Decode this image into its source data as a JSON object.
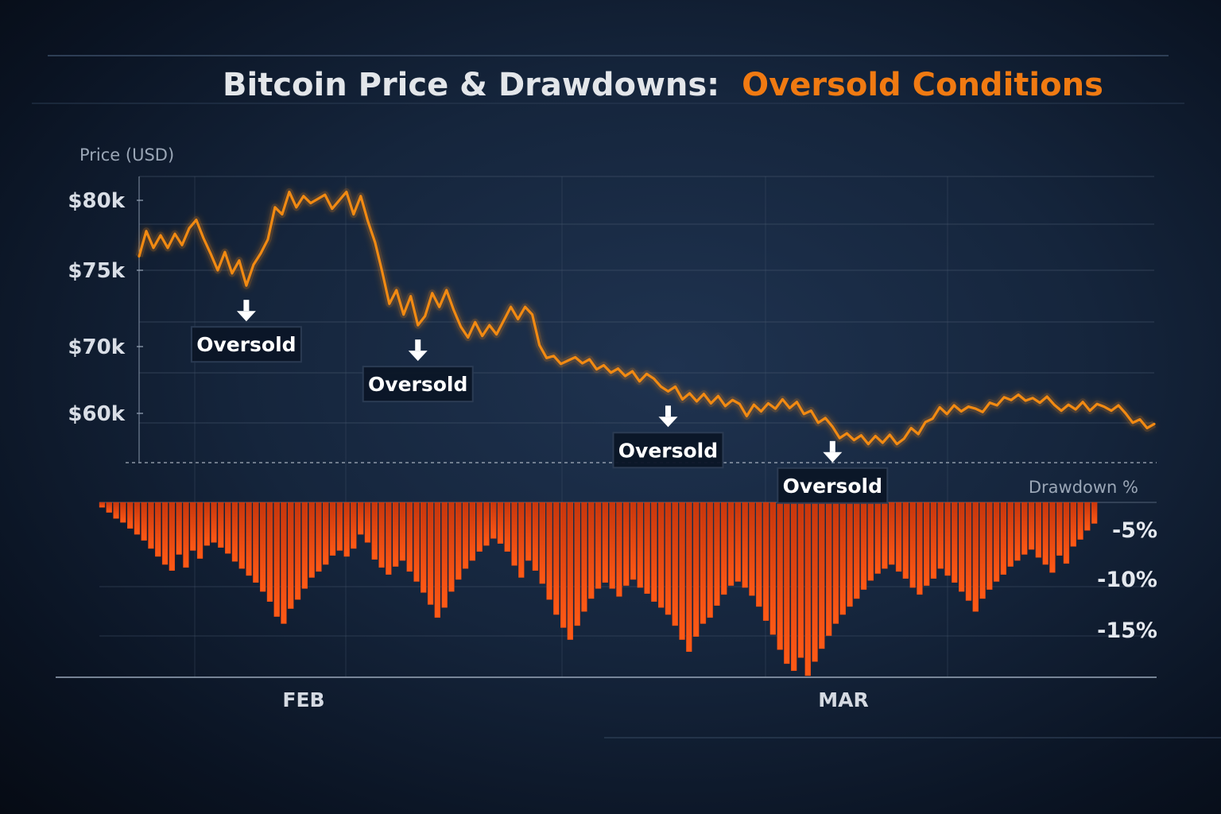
{
  "chart_data": {
    "type": "line",
    "title_main": "Bitcoin Price & Drawdowns:",
    "title_highlight": "Oversold Conditions",
    "title_color": "#e3e6ea",
    "highlight_color": "#f07a12",
    "price_axis_label": "Price (USD)",
    "drawdown_axis_label": "Drawdown %",
    "price_ticks": [
      "$80k",
      "$75k",
      "$70k",
      "$60k"
    ],
    "drawdown_ticks": [
      "-5%",
      "-10%",
      "-15%"
    ],
    "x_ticks": [
      "FEB",
      "MAR"
    ],
    "price_line_color": "#f28a12",
    "drawdown_bar_color": "#e8440f",
    "grid": true,
    "price_series": {
      "name": "Bitcoin price",
      "unit": "thousand USD",
      "values": [
        76.0,
        77.8,
        76.6,
        77.5,
        76.6,
        77.6,
        76.8,
        78.0,
        78.6,
        77.3,
        76.2,
        75.0,
        76.3,
        74.8,
        75.7,
        74.0,
        75.4,
        76.2,
        77.2,
        79.5,
        79.0,
        80.6,
        79.5,
        80.3,
        79.8,
        80.1,
        80.4,
        79.4,
        80.0,
        80.6,
        79.0,
        80.3,
        78.5,
        77.0,
        74.9,
        72.8,
        73.7,
        72.1,
        73.3,
        71.4,
        72.0,
        73.5,
        72.6,
        73.7,
        72.4,
        71.3,
        70.6,
        71.6,
        70.7,
        71.4,
        70.8,
        71.7,
        72.6,
        71.8,
        72.6,
        72.1,
        70.1,
        68.3,
        68.6,
        67.4,
        67.9,
        68.4,
        67.5,
        68.1,
        66.6,
        67.2,
        66.1,
        66.7,
        65.6,
        66.3,
        64.8,
        65.9,
        65.2,
        64.0,
        63.3,
        64.0,
        62.1,
        63.0,
        61.8,
        62.9,
        61.5,
        62.6,
        61.1,
        62.0,
        61.4,
        59.6,
        61.3,
        60.3,
        61.5,
        60.7,
        62.1,
        60.8,
        61.7,
        59.9,
        60.4,
        58.6,
        59.3,
        58.0,
        56.3,
        57.0,
        56.0,
        56.7,
        55.4,
        56.6,
        55.6,
        56.8,
        55.4,
        56.2,
        57.8,
        56.9,
        58.7,
        59.2,
        60.9,
        59.9,
        61.2,
        60.3,
        61.0,
        60.7,
        60.2,
        61.6,
        61.2,
        62.4,
        62.0,
        62.8,
        61.9,
        62.3,
        61.6,
        62.5,
        61.3,
        60.4,
        61.3,
        60.6,
        61.7,
        60.4,
        61.4,
        61.0,
        60.4,
        61.2,
        60.0,
        58.6,
        59.1,
        57.8,
        58.4
      ]
    },
    "drawdown_series": {
      "name": "Drawdown",
      "unit": "percent",
      "values": [
        -0.5,
        -1.0,
        -1.6,
        -2.0,
        -2.6,
        -3.2,
        -3.8,
        -4.6,
        -5.4,
        -6.2,
        -6.8,
        -5.2,
        -6.5,
        -4.8,
        -5.6,
        -4.3,
        -4.0,
        -4.5,
        -5.1,
        -5.9,
        -6.6,
        -7.3,
        -8.0,
        -8.9,
        -9.9,
        -11.4,
        -12.1,
        -10.6,
        -9.7,
        -8.6,
        -7.5,
        -6.9,
        -6.2,
        -5.3,
        -4.8,
        -5.4,
        -4.6,
        -3.2,
        -4.0,
        -5.7,
        -6.5,
        -7.2,
        -6.4,
        -5.8,
        -6.9,
        -7.9,
        -9.0,
        -10.2,
        -11.5,
        -10.5,
        -8.9,
        -7.7,
        -6.6,
        -5.8,
        -4.9,
        -4.3,
        -3.6,
        -4.1,
        -4.9,
        -6.3,
        -7.5,
        -5.8,
        -6.8,
        -8.1,
        -9.7,
        -11.2,
        -12.5,
        -13.7,
        -12.3,
        -10.9,
        -9.6,
        -8.6,
        -8.0,
        -8.6,
        -9.4,
        -8.3,
        -7.7,
        -8.5,
        -9.1,
        -9.9,
        -10.5,
        -11.2,
        -12.3,
        -13.7,
        -14.9,
        -13.4,
        -12.1,
        -11.5,
        -10.3,
        -9.2,
        -8.3,
        -7.9,
        -8.5,
        -9.3,
        -10.4,
        -11.8,
        -13.2,
        -14.7,
        -16.1,
        -16.8,
        -15.5,
        -17.3,
        -15.9,
        -14.6,
        -13.3,
        -12.1,
        -11.2,
        -10.4,
        -9.6,
        -8.7,
        -7.8,
        -7.1,
        -6.6,
        -6.2,
        -6.9,
        -7.6,
        -8.5,
        -9.2,
        -8.3,
        -7.6,
        -6.6,
        -7.3,
        -8.0,
        -8.9,
        -9.8,
        -10.9,
        -9.6,
        -8.7,
        -7.9,
        -7.2,
        -6.4,
        -5.8,
        -5.2,
        -4.7,
        -5.5,
        -6.2,
        -7.0,
        -5.3,
        -6.1,
        -4.4,
        -3.7,
        -2.8,
        -2.1
      ]
    },
    "annotations": [
      {
        "label": "Oversold",
        "at_index": 15
      },
      {
        "label": "Oversold",
        "at_index": 39
      },
      {
        "label": "Oversold",
        "at_index": 74
      },
      {
        "label": "Oversold",
        "at_index": 97
      }
    ],
    "annotation_style": {
      "box_fill": "#0b1627",
      "box_stroke": "#2c3c54",
      "arrow_color": "#ffffff"
    }
  }
}
